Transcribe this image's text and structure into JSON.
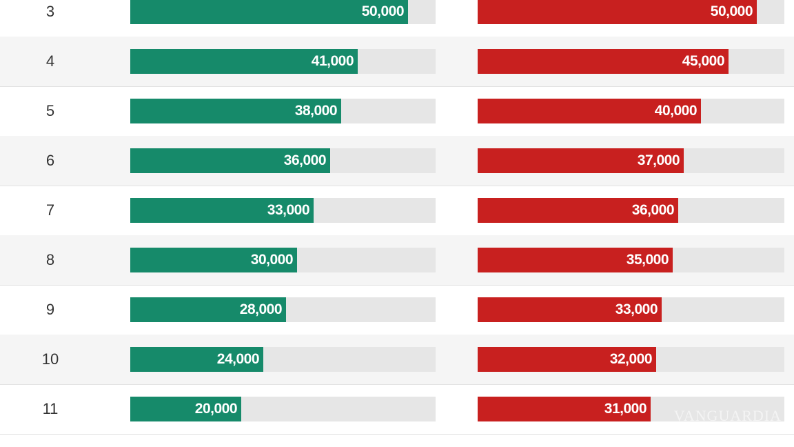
{
  "chart_data": {
    "type": "bar",
    "orientation": "horizontal",
    "title": "",
    "xlabel": "",
    "ylabel": "",
    "categories": [
      "3",
      "4",
      "5",
      "6",
      "7",
      "8",
      "9",
      "10",
      "11"
    ],
    "xlim": [
      0,
      55000
    ],
    "series": [
      {
        "name": "green",
        "color": "#168a6a",
        "values": [
          50000,
          41000,
          38000,
          36000,
          33000,
          30000,
          28000,
          24000,
          20000
        ],
        "labels": [
          "50,000",
          "41,000",
          "38,000",
          "36,000",
          "33,000",
          "30,000",
          "28,000",
          "24,000",
          "20,000"
        ]
      },
      {
        "name": "red",
        "color": "#c8201f",
        "values": [
          50000,
          45000,
          40000,
          37000,
          36000,
          35000,
          33000,
          32000,
          31000
        ],
        "labels": [
          "50,000",
          "45,000",
          "40,000",
          "37,000",
          "36,000",
          "35,000",
          "33,000",
          "32,000",
          "31,000"
        ]
      }
    ]
  },
  "watermark": "VANGUARDIA",
  "colors": {
    "track": "#e6e6e6",
    "row_shade": "#f5f5f5",
    "text": "#333333",
    "label": "#ffffff"
  }
}
